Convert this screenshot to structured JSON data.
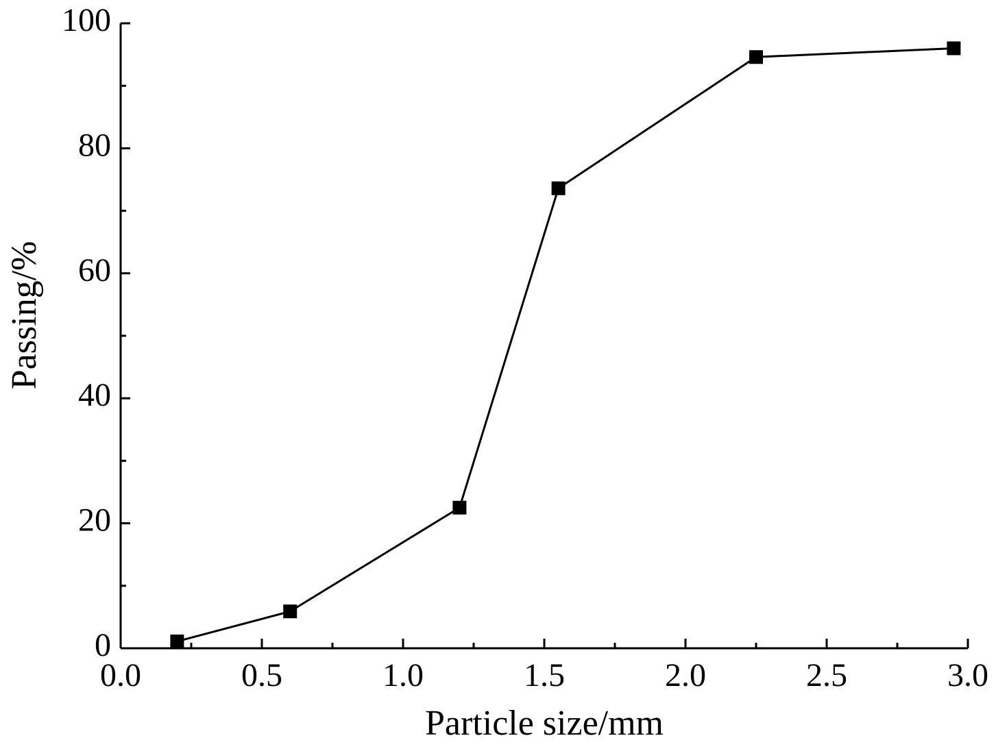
{
  "chart_data": {
    "type": "line",
    "x_label": "Particle size/mm",
    "y_label": "Passing/%",
    "x": [
      0.2,
      0.6,
      1.2,
      1.55,
      2.25,
      2.95
    ],
    "series": [
      {
        "color": "#000000",
        "marker": "square",
        "values": [
          1.1,
          5.9,
          22.5,
          73.6,
          94.6,
          96
        ]
      }
    ],
    "xlim": [
      0,
      3
    ],
    "xticks": [
      {
        "value": 0,
        "label": "0.0"
      },
      0.5,
      {
        "value": 1,
        "label": "1.0"
      },
      1.5,
      {
        "value": 2,
        "label": "2.0"
      },
      2.5,
      {
        "value": 3,
        "label": "3.0"
      }
    ],
    "ylim": [
      0,
      100
    ],
    "yticks": [
      0,
      20,
      40,
      60,
      80,
      100
    ],
    "grid": false
  }
}
